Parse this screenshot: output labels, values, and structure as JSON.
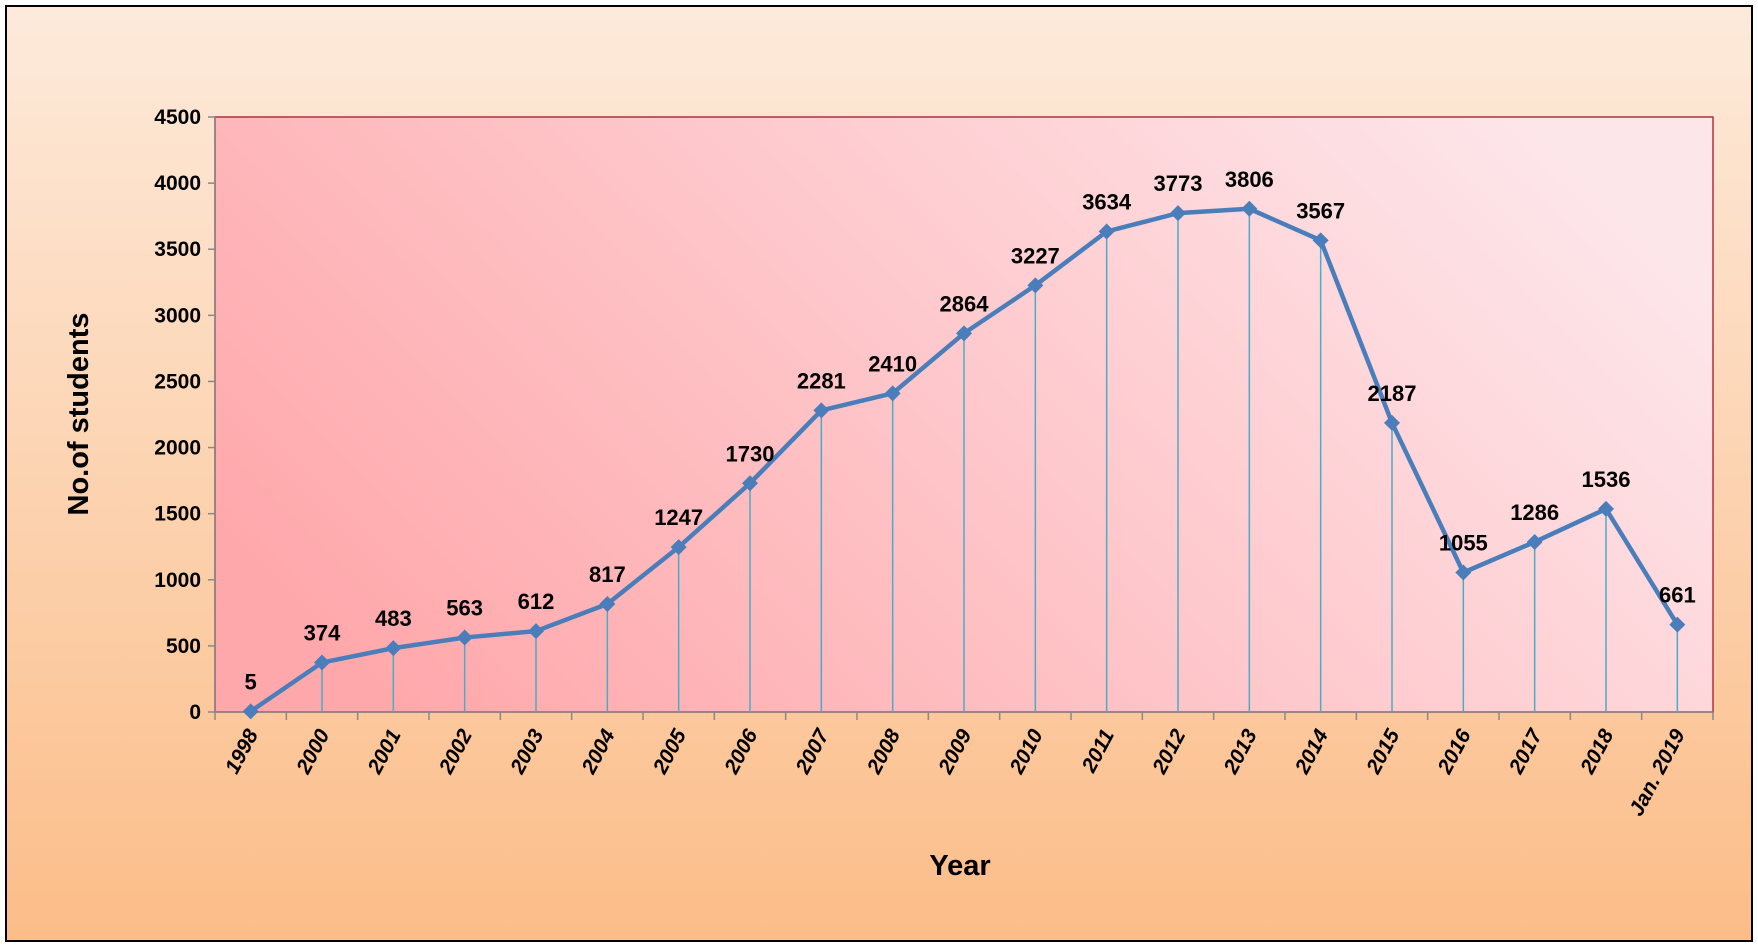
{
  "chart_data": {
    "type": "line",
    "x_label": "Year",
    "y_label": "No.of students",
    "categories": [
      "1998",
      "2000",
      "2001",
      "2002",
      "2003",
      "2004",
      "2005",
      "2006",
      "2007",
      "2008",
      "2009",
      "2010",
      "2011",
      "2012",
      "2013",
      "2014",
      "2015",
      "2016",
      "2017",
      "2018",
      "Jan. 2019"
    ],
    "values": [
      5,
      374,
      483,
      563,
      612,
      817,
      1247,
      1730,
      2281,
      2410,
      2864,
      3227,
      3634,
      3773,
      3806,
      3567,
      2187,
      1055,
      1286,
      1536,
      661
    ],
    "color": "#4a7ebb",
    "drop_line_color": "#4bacc6",
    "ylim": [
      0,
      4500
    ],
    "yticks": [
      0,
      500,
      1000,
      1500,
      2000,
      2500,
      3000,
      3500,
      4000,
      4500
    ]
  }
}
